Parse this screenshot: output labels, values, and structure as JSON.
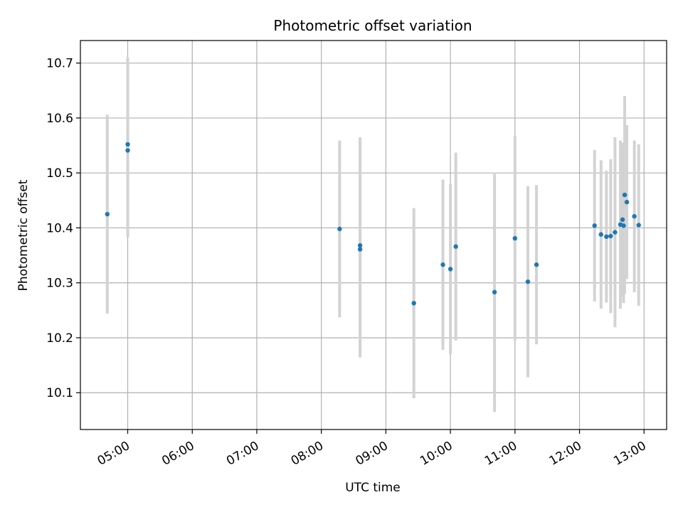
{
  "chart_data": {
    "type": "scatter",
    "title": "Photometric offset variation",
    "xlabel": "UTC time",
    "ylabel": "Photometric offset",
    "x_tick_labels": [
      "05:00",
      "06:00",
      "07:00",
      "08:00",
      "09:00",
      "10:00",
      "11:00",
      "12:00",
      "13:00"
    ],
    "y_tick_labels": [
      "10.1",
      "10.2",
      "10.3",
      "10.4",
      "10.5",
      "10.6",
      "10.7"
    ],
    "grid": true,
    "xlim": [
      "04:16",
      "13:21"
    ],
    "ylim": [
      10.033,
      10.741
    ],
    "colors": {
      "marker": "#1f77b4",
      "errorbar": "#d3d3d3",
      "grid": "#b0b0b0"
    },
    "points": [
      {
        "x": "04:41",
        "y": 10.425,
        "err": 0.181
      },
      {
        "x": "05:00",
        "y": 10.552,
        "err": 0.158
      },
      {
        "x": "05:00",
        "y": 10.541,
        "err": 0.158
      },
      {
        "x": "08:17",
        "y": 10.398,
        "err": 0.161
      },
      {
        "x": "08:36",
        "y": 10.368,
        "err": 0.197
      },
      {
        "x": "08:36",
        "y": 10.361,
        "err": 0.197
      },
      {
        "x": "09:26",
        "y": 10.263,
        "err": 0.173
      },
      {
        "x": "09:53",
        "y": 10.333,
        "err": 0.155
      },
      {
        "x": "10:00",
        "y": 10.325,
        "err": 0.155
      },
      {
        "x": "10:05",
        "y": 10.366,
        "err": 0.171
      },
      {
        "x": "10:41",
        "y": 10.283,
        "err": 0.218
      },
      {
        "x": "11:00",
        "y": 10.381,
        "err": 0.186
      },
      {
        "x": "11:12",
        "y": 10.302,
        "err": 0.174
      },
      {
        "x": "11:20",
        "y": 10.333,
        "err": 0.145
      },
      {
        "x": "12:14",
        "y": 10.404,
        "err": 0.138
      },
      {
        "x": "12:20",
        "y": 10.388,
        "err": 0.135
      },
      {
        "x": "12:25",
        "y": 10.384,
        "err": 0.12
      },
      {
        "x": "12:29",
        "y": 10.385,
        "err": 0.14
      },
      {
        "x": "12:33",
        "y": 10.392,
        "err": 0.173
      },
      {
        "x": "12:38",
        "y": 10.406,
        "err": 0.153
      },
      {
        "x": "12:40",
        "y": 10.415,
        "err": 0.14
      },
      {
        "x": "12:41",
        "y": 10.404,
        "err": 0.141
      },
      {
        "x": "12:42",
        "y": 10.46,
        "err": 0.18
      },
      {
        "x": "12:44",
        "y": 10.447,
        "err": 0.14
      },
      {
        "x": "12:51",
        "y": 10.421,
        "err": 0.138
      },
      {
        "x": "12:55",
        "y": 10.405,
        "err": 0.147
      }
    ]
  }
}
